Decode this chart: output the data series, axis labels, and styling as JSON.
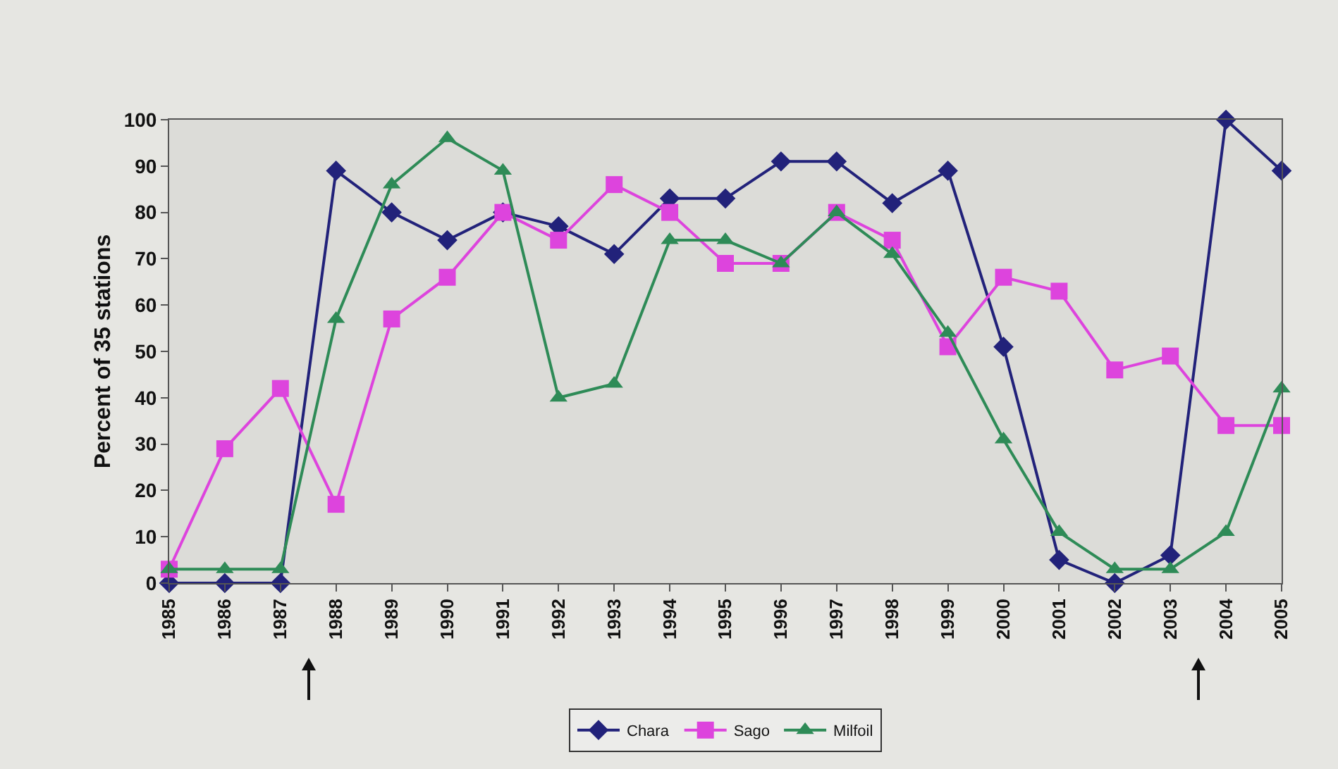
{
  "chart_data": {
    "type": "line",
    "ylabel": "Percent of 35 stations",
    "x": [
      1985,
      1986,
      1987,
      1988,
      1989,
      1990,
      1991,
      1992,
      1993,
      1994,
      1995,
      1996,
      1997,
      1998,
      1999,
      2000,
      2001,
      2002,
      2003,
      2004,
      2005
    ],
    "xlim": [
      1985,
      2005
    ],
    "xticks": [
      1985,
      1986,
      1987,
      1988,
      1989,
      1990,
      1991,
      1992,
      1993,
      1994,
      1995,
      1996,
      1997,
      1998,
      1999,
      2000,
      2001,
      2002,
      2003,
      2004,
      2005
    ],
    "ylim": [
      0,
      100
    ],
    "yticks": [
      0,
      10,
      20,
      30,
      40,
      50,
      60,
      70,
      80,
      90,
      100
    ],
    "grid": false,
    "legend": "bottom",
    "series": [
      {
        "name": "Chara",
        "color": "#22227a",
        "marker": "diamond",
        "values": [
          0,
          0,
          0,
          89,
          80,
          74,
          80,
          77,
          71,
          83,
          83,
          91,
          91,
          82,
          89,
          51,
          5,
          0,
          6,
          100,
          89
        ]
      },
      {
        "name": "Sago",
        "color": "#dd44dd",
        "marker": "square",
        "values": [
          3,
          29,
          42,
          17,
          57,
          66,
          80,
          74,
          86,
          80,
          69,
          69,
          80,
          74,
          51,
          66,
          63,
          46,
          49,
          34,
          34
        ]
      },
      {
        "name": "Milfoil",
        "color": "#2e8b57",
        "marker": "triangle",
        "values": [
          3,
          3,
          3,
          57,
          86,
          96,
          89,
          40,
          43,
          74,
          74,
          69,
          80,
          71,
          54,
          31,
          11,
          3,
          3,
          11,
          42
        ]
      }
    ]
  }
}
